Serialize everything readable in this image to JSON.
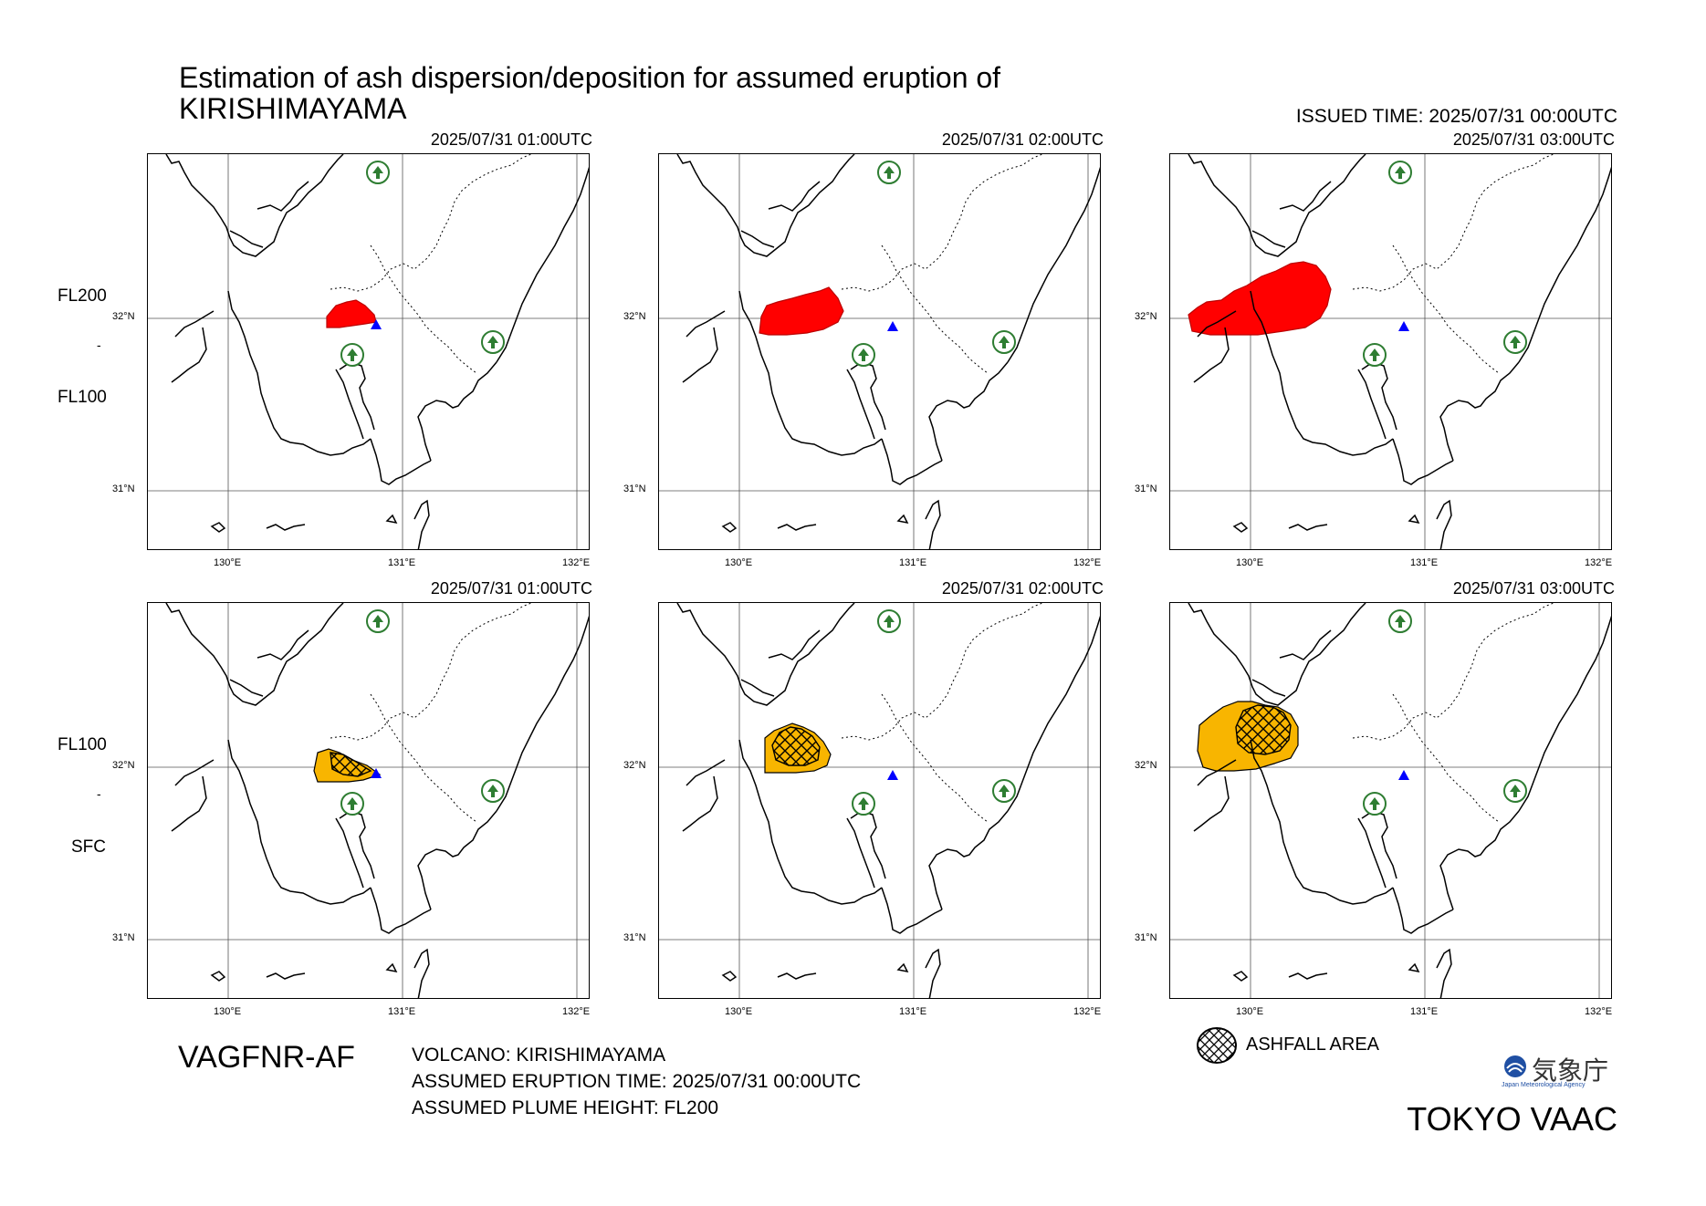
{
  "title": {
    "line1": "Estimation of ash dispersion/deposition for assumed eruption of",
    "line2": "KIRISHIMAYAMA"
  },
  "issued_time": "ISSUED TIME: 2025/07/31 00:00UTC",
  "rows": [
    {
      "level_top": "FL200",
      "level_sep": "-",
      "level_bottom": "FL100",
      "panels": [
        {
          "time": "2025/07/31 01:00UTC",
          "fill": "#ff0000",
          "ashfall": false
        },
        {
          "time": "2025/07/31 02:00UTC",
          "fill": "#ff0000",
          "ashfall": false
        },
        {
          "time": "2025/07/31 03:00UTC",
          "fill": "#ff0000",
          "ashfall": false
        }
      ]
    },
    {
      "level_top": "FL100",
      "level_sep": "-",
      "level_bottom": "SFC",
      "panels": [
        {
          "time": "2025/07/31 01:00UTC",
          "fill": "#f8b500",
          "ashfall": true
        },
        {
          "time": "2025/07/31 02:00UTC",
          "fill": "#f8b500",
          "ashfall": true
        },
        {
          "time": "2025/07/31 03:00UTC",
          "fill": "#f8b500",
          "ashfall": true
        }
      ]
    }
  ],
  "axes": {
    "lat_ticks": [
      "32°N",
      "31°N"
    ],
    "lon_ticks": [
      "130°E",
      "131°E",
      "132°E"
    ]
  },
  "product_code": "VAGFNR-AF",
  "info": {
    "volcano": "VOLCANO: KIRISHIMAYAMA",
    "eruption_time": "ASSUMED ERUPTION TIME: 2025/07/31 00:00UTC",
    "plume_height": "ASSUMED PLUME HEIGHT: FL200"
  },
  "legend": {
    "ashfall_label": "ASHFALL AREA"
  },
  "agency": {
    "name_jp": "気象庁",
    "name_en": "Japan Meteorological Agency",
    "vaac": "TOKYO VAAC"
  },
  "colors": {
    "upper_plume": "#ff0000",
    "lower_plume": "#f8b500",
    "volcano_marker": "#0000ff",
    "airport_marker": "#2e7d32"
  },
  "icons": [
    "volcano-triangle-icon",
    "airport-icon",
    "ashfall-hatch-icon",
    "jma-logo-icon"
  ]
}
